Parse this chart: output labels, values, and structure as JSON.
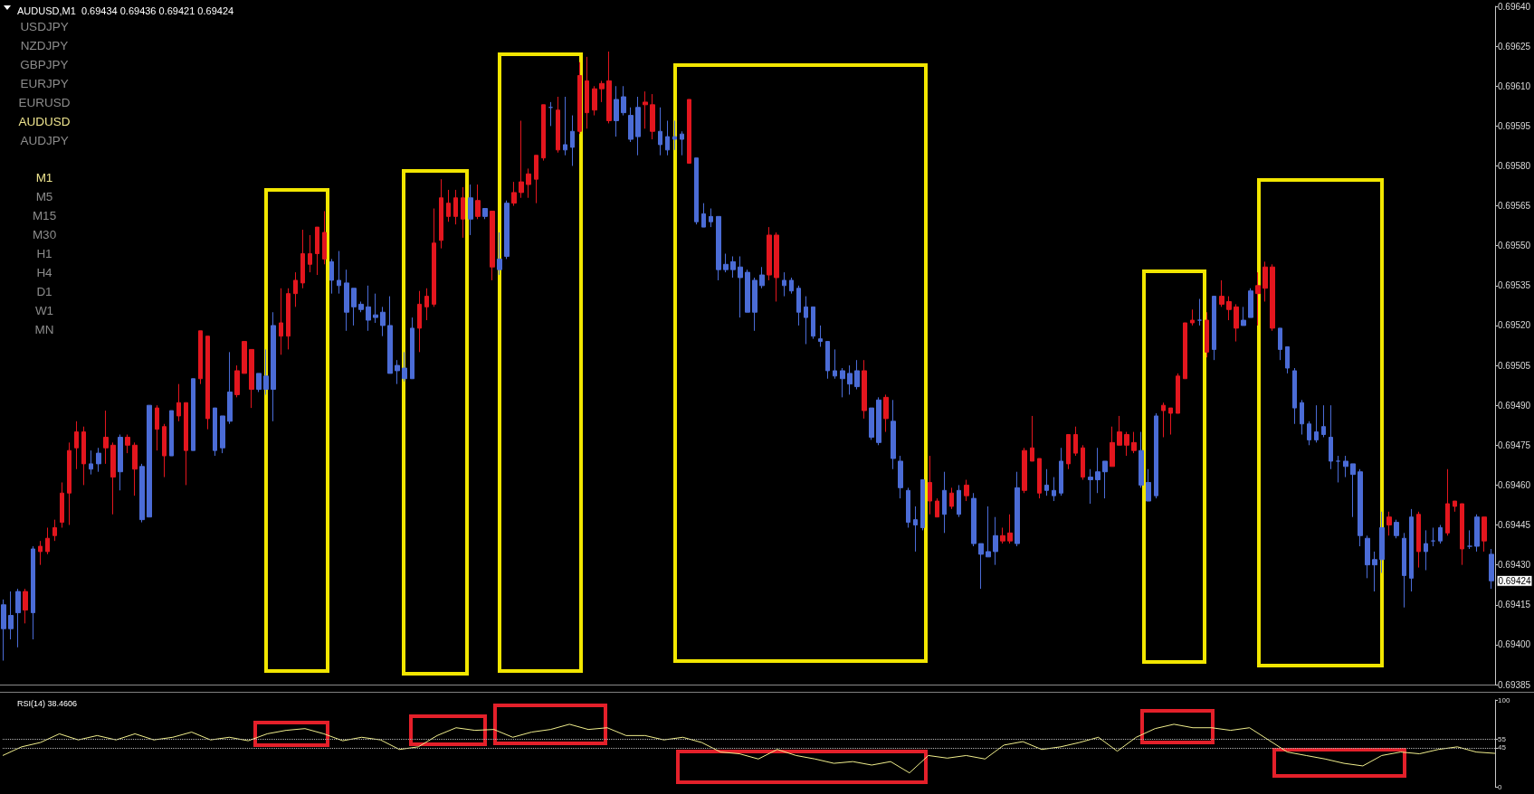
{
  "chart_data": [
    {
      "type": "candlestick",
      "title": "AUDUSD,M1  0.69434 0.69436 0.69421 0.69424",
      "categories": [
        null,
        null,
        null,
        null,
        null,
        null,
        null,
        null,
        null,
        null,
        null,
        null,
        null,
        null,
        null,
        null,
        null,
        null,
        null,
        null,
        null,
        null,
        null,
        null,
        null,
        null,
        null,
        null,
        null,
        null,
        null,
        null,
        null,
        null,
        null,
        null,
        null,
        null,
        null,
        null,
        null,
        null,
        null,
        null,
        null,
        null,
        null,
        null,
        null,
        null,
        null,
        null,
        null,
        null,
        null,
        null,
        null,
        null,
        null,
        null,
        null,
        null,
        null,
        null,
        null,
        null,
        null,
        null,
        null,
        null,
        null,
        null,
        null,
        null,
        null,
        null,
        null,
        null,
        null,
        null,
        null,
        null,
        null,
        null,
        null,
        null,
        null,
        null,
        null,
        null,
        null,
        null,
        null,
        null,
        null,
        null,
        null,
        null,
        null,
        null,
        null,
        null,
        null,
        null,
        null,
        null,
        null,
        null,
        null,
        null,
        null,
        null,
        null,
        null,
        null,
        null,
        null,
        null,
        null,
        null,
        null,
        null,
        null,
        null,
        null,
        null,
        null,
        null,
        null,
        null,
        null,
        null,
        null,
        null,
        null,
        null,
        null,
        null,
        null,
        null,
        null,
        null,
        null,
        null,
        null,
        null,
        null,
        null,
        null,
        null,
        null,
        null,
        null,
        null,
        null,
        null,
        null,
        null,
        null,
        null,
        null,
        null,
        null,
        null,
        null,
        null,
        null,
        null,
        null,
        null,
        null,
        null,
        null,
        null,
        null,
        null,
        null,
        null,
        null,
        null,
        null,
        null,
        null,
        null,
        null,
        null,
        null,
        null,
        null,
        null,
        null,
        null,
        null,
        null,
        null,
        null,
        null,
        null,
        null,
        null,
        null,
        null,
        null,
        null,
        null
      ],
      "ohlc": [
        [
          0.69415,
          0.69417,
          0.69394,
          0.69406
        ],
        [
          0.69411,
          0.6942,
          0.69402,
          0.69406
        ],
        [
          0.6942,
          0.69421,
          0.69399,
          0.69412
        ],
        [
          0.69413,
          0.69421,
          0.69408,
          0.6942
        ],
        [
          0.69436,
          0.69437,
          0.69402,
          0.69412
        ],
        [
          0.69435,
          0.69439,
          0.6943,
          0.69437
        ],
        [
          0.69435,
          0.69444,
          0.69434,
          0.6944
        ],
        [
          0.69441,
          0.69447,
          0.69439,
          0.69444
        ],
        [
          0.69446,
          0.69461,
          0.69444,
          0.69457
        ],
        [
          0.69457,
          0.69476,
          0.69445,
          0.69473
        ],
        [
          0.69474,
          0.69484,
          0.69466,
          0.6948
        ],
        [
          0.69468,
          0.69482,
          0.6946,
          0.6948
        ],
        [
          0.69468,
          0.69473,
          0.69464,
          0.69466
        ],
        [
          0.69472,
          0.69474,
          0.69465,
          0.69468
        ],
        [
          0.69474,
          0.69488,
          0.69468,
          0.69478
        ],
        [
          0.69463,
          0.69476,
          0.69449,
          0.69475
        ],
        [
          0.69478,
          0.69479,
          0.69458,
          0.69465
        ],
        [
          0.69475,
          0.69479,
          0.69472,
          0.69478
        ],
        [
          0.69466,
          0.69476,
          0.69456,
          0.69475
        ],
        [
          0.69467,
          0.69468,
          0.69446,
          0.69447
        ],
        [
          0.6949,
          0.6949,
          0.69448,
          0.69448
        ],
        [
          0.69481,
          0.6949,
          0.69473,
          0.69489
        ],
        [
          0.69471,
          0.69483,
          0.69463,
          0.69482
        ],
        [
          0.69488,
          0.69488,
          0.69471,
          0.69471
        ],
        [
          0.69486,
          0.69498,
          0.69484,
          0.69491
        ],
        [
          0.69473,
          0.69491,
          0.6946,
          0.69491
        ],
        [
          0.695,
          0.695,
          0.69473,
          0.69473
        ],
        [
          0.695,
          0.69518,
          0.69498,
          0.69518
        ],
        [
          0.69485,
          0.69516,
          0.69481,
          0.69516
        ],
        [
          0.69489,
          0.69489,
          0.69471,
          0.69473
        ],
        [
          0.69486,
          0.69486,
          0.69472,
          0.69474
        ],
        [
          0.69495,
          0.6951,
          0.69483,
          0.69484
        ],
        [
          0.69494,
          0.69505,
          0.69493,
          0.69503
        ],
        [
          0.69502,
          0.69514,
          0.69502,
          0.69514
        ],
        [
          0.69496,
          0.69511,
          0.69489,
          0.69511
        ],
        [
          0.69502,
          0.69502,
          0.69495,
          0.69496
        ],
        [
          0.69501,
          0.69511,
          0.69494,
          0.69496
        ],
        [
          0.6952,
          0.69525,
          0.69484,
          0.69496
        ],
        [
          0.69516,
          0.69534,
          0.69509,
          0.69521
        ],
        [
          0.69516,
          0.69534,
          0.69511,
          0.69532
        ],
        [
          0.69532,
          0.6954,
          0.69527,
          0.69537
        ],
        [
          0.69536,
          0.69556,
          0.69534,
          0.69547
        ],
        [
          0.69543,
          0.69554,
          0.6954,
          0.69547
        ],
        [
          0.69547,
          0.69557,
          0.69539,
          0.69557
        ],
        [
          0.69545,
          0.69563,
          0.69543,
          0.69555
        ],
        [
          0.69544,
          0.69545,
          0.69532,
          0.69537
        ],
        [
          0.69537,
          0.69548,
          0.69532,
          0.69535
        ],
        [
          0.69536,
          0.69541,
          0.69518,
          0.69525
        ],
        [
          0.69534,
          0.69534,
          0.6952,
          0.69527
        ],
        [
          0.69528,
          0.69529,
          0.69525,
          0.69526
        ],
        [
          0.69527,
          0.69535,
          0.69518,
          0.69522
        ],
        [
          0.69524,
          0.69532,
          0.69521,
          0.69523
        ],
        [
          0.69525,
          0.69527,
          0.69516,
          0.6952
        ],
        [
          0.6952,
          0.69531,
          0.69502,
          0.69502
        ],
        [
          0.69505,
          0.69507,
          0.69498,
          0.69503
        ],
        [
          0.69504,
          0.6951,
          0.69499,
          0.695
        ],
        [
          0.69519,
          0.69523,
          0.695,
          0.695
        ],
        [
          0.69519,
          0.69533,
          0.6951,
          0.69528
        ],
        [
          0.69527,
          0.69534,
          0.69522,
          0.69531
        ],
        [
          0.69528,
          0.69564,
          0.69527,
          0.69551
        ],
        [
          0.69552,
          0.69575,
          0.69549,
          0.69568
        ],
        [
          0.69561,
          0.69571,
          0.69559,
          0.69566
        ],
        [
          0.69561,
          0.69571,
          0.69558,
          0.69568
        ],
        [
          0.6956,
          0.69572,
          0.69553,
          0.69568
        ],
        [
          0.69568,
          0.69573,
          0.69554,
          0.6956
        ],
        [
          0.69561,
          0.69573,
          0.6956,
          0.69567
        ],
        [
          0.69564,
          0.69564,
          0.6956,
          0.69561
        ],
        [
          0.69542,
          0.69563,
          0.69537,
          0.69563
        ],
        [
          0.69545,
          0.69555,
          0.69539,
          0.69541
        ],
        [
          0.69566,
          0.69567,
          0.69545,
          0.69546
        ],
        [
          0.69566,
          0.69574,
          0.69565,
          0.6957
        ],
        [
          0.6957,
          0.69597,
          0.69568,
          0.69574
        ],
        [
          0.69573,
          0.69579,
          0.69568,
          0.69577
        ],
        [
          0.69575,
          0.69584,
          0.69566,
          0.69584
        ],
        [
          0.69583,
          0.69603,
          0.69582,
          0.69603
        ],
        [
          0.69602,
          0.69604,
          0.69595,
          0.69602
        ],
        [
          0.69586,
          0.69606,
          0.69585,
          0.69601
        ],
        [
          0.69588,
          0.69606,
          0.69584,
          0.69586
        ],
        [
          0.69593,
          0.69599,
          0.6958,
          0.69587
        ],
        [
          0.69593,
          0.69619,
          0.69592,
          0.69614
        ],
        [
          0.696,
          0.69621,
          0.69594,
          0.69612
        ],
        [
          0.69601,
          0.6961,
          0.69599,
          0.69609
        ],
        [
          0.69609,
          0.69612,
          0.69604,
          0.69611
        ],
        [
          0.69597,
          0.69623,
          0.69596,
          0.69612
        ],
        [
          0.69605,
          0.6961,
          0.69591,
          0.69597
        ],
        [
          0.69606,
          0.6961,
          0.69599,
          0.696
        ],
        [
          0.69599,
          0.69602,
          0.69589,
          0.6959
        ],
        [
          0.69602,
          0.69606,
          0.69584,
          0.69591
        ],
        [
          0.69603,
          0.69608,
          0.69594,
          0.69604
        ],
        [
          0.69593,
          0.69607,
          0.6959,
          0.69603
        ],
        [
          0.69593,
          0.69602,
          0.69584,
          0.69588
        ],
        [
          0.69591,
          0.69597,
          0.69584,
          0.69586
        ],
        [
          0.69591,
          0.69597,
          0.69586,
          0.6959
        ],
        [
          0.69592,
          0.69593,
          0.69584,
          0.6959
        ],
        [
          0.69581,
          0.69605,
          0.69581,
          0.69605
        ],
        [
          0.69583,
          0.69583,
          0.69558,
          0.69559
        ],
        [
          0.69562,
          0.69566,
          0.69557,
          0.69557
        ],
        [
          0.69561,
          0.69564,
          0.69557,
          0.69559
        ],
        [
          0.69561,
          0.69561,
          0.69537,
          0.69541
        ],
        [
          0.69543,
          0.69547,
          0.6954,
          0.69541
        ],
        [
          0.69544,
          0.69546,
          0.69538,
          0.69541
        ],
        [
          0.69542,
          0.69546,
          0.69523,
          0.69538
        ],
        [
          0.6954,
          0.69541,
          0.69525,
          0.69525
        ],
        [
          0.69537,
          0.69538,
          0.69518,
          0.69525
        ],
        [
          0.69539,
          0.69542,
          0.69534,
          0.69535
        ],
        [
          0.69539,
          0.69557,
          0.69537,
          0.69554
        ],
        [
          0.69538,
          0.69555,
          0.69529,
          0.69554
        ],
        [
          0.69537,
          0.6954,
          0.69531,
          0.69535
        ],
        [
          0.69537,
          0.69538,
          0.69532,
          0.69533
        ],
        [
          0.69534,
          0.69535,
          0.6952,
          0.69525
        ],
        [
          0.69527,
          0.69531,
          0.69513,
          0.69523
        ],
        [
          0.69527,
          0.69527,
          0.69515,
          0.69516
        ],
        [
          0.69515,
          0.6952,
          0.69512,
          0.69514
        ],
        [
          0.69514,
          0.69514,
          0.695,
          0.69503
        ],
        [
          0.69503,
          0.69511,
          0.695,
          0.69501
        ],
        [
          0.69503,
          0.69504,
          0.69493,
          0.695
        ],
        [
          0.69502,
          0.69505,
          0.69494,
          0.69498
        ],
        [
          0.69503,
          0.69507,
          0.69496,
          0.69497
        ],
        [
          0.69488,
          0.69507,
          0.69485,
          0.69503
        ],
        [
          0.69489,
          0.69489,
          0.69477,
          0.69478
        ],
        [
          0.69492,
          0.69493,
          0.69475,
          0.69476
        ],
        [
          0.69485,
          0.69494,
          0.6948,
          0.69493
        ],
        [
          0.69484,
          0.69492,
          0.69466,
          0.6947
        ],
        [
          0.69469,
          0.69471,
          0.69455,
          0.69459
        ],
        [
          0.69458,
          0.69459,
          0.69444,
          0.69446
        ],
        [
          0.69447,
          0.69452,
          0.69435,
          0.69445
        ],
        [
          0.69462,
          0.69462,
          0.69443,
          0.69444
        ],
        [
          0.69454,
          0.69471,
          0.69449,
          0.69461
        ],
        [
          0.69448,
          0.69455,
          0.69448,
          0.69454
        ],
        [
          0.69458,
          0.69465,
          0.69442,
          0.69449
        ],
        [
          0.69452,
          0.69459,
          0.69451,
          0.69457
        ],
        [
          0.69458,
          0.6946,
          0.69448,
          0.69449
        ],
        [
          0.69456,
          0.69462,
          0.69454,
          0.6946
        ],
        [
          0.69455,
          0.69457,
          0.69437,
          0.69438
        ],
        [
          0.69438,
          0.69438,
          0.69421,
          0.69434
        ],
        [
          0.69435,
          0.69452,
          0.69433,
          0.69433
        ],
        [
          0.69441,
          0.69448,
          0.6943,
          0.69435
        ],
        [
          0.69439,
          0.69444,
          0.69438,
          0.69441
        ],
        [
          0.69439,
          0.69449,
          0.69438,
          0.69442
        ],
        [
          0.69459,
          0.69465,
          0.69437,
          0.69438
        ],
        [
          0.69458,
          0.69474,
          0.69457,
          0.69473
        ],
        [
          0.69469,
          0.69486,
          0.69469,
          0.69474
        ],
        [
          0.69457,
          0.6947,
          0.69455,
          0.6947
        ],
        [
          0.6946,
          0.69466,
          0.69456,
          0.69458
        ],
        [
          0.69458,
          0.69463,
          0.69454,
          0.69456
        ],
        [
          0.69469,
          0.69474,
          0.69456,
          0.69457
        ],
        [
          0.69468,
          0.69479,
          0.69466,
          0.69479
        ],
        [
          0.69472,
          0.69482,
          0.69471,
          0.69479
        ],
        [
          0.69463,
          0.69475,
          0.69462,
          0.69474
        ],
        [
          0.69463,
          0.69466,
          0.69453,
          0.69462
        ],
        [
          0.69465,
          0.69474,
          0.69457,
          0.69462
        ],
        [
          0.69469,
          0.69469,
          0.69455,
          0.69465
        ],
        [
          0.69467,
          0.69482,
          0.69467,
          0.69476
        ],
        [
          0.69475,
          0.69486,
          0.69475,
          0.6948
        ],
        [
          0.69475,
          0.6948,
          0.69471,
          0.69479
        ],
        [
          0.69473,
          0.6948,
          0.69472,
          0.69476
        ],
        [
          0.69473,
          0.6948,
          0.69459,
          0.6946
        ],
        [
          0.69461,
          0.69466,
          0.69454,
          0.69454
        ],
        [
          0.69486,
          0.69487,
          0.69455,
          0.69456
        ],
        [
          0.69488,
          0.69491,
          0.69478,
          0.6949
        ],
        [
          0.69487,
          0.69489,
          0.69479,
          0.69489
        ],
        [
          0.69487,
          0.69502,
          0.69487,
          0.69501
        ],
        [
          0.695,
          0.69521,
          0.695,
          0.69521
        ],
        [
          0.69521,
          0.69526,
          0.6952,
          0.69522
        ],
        [
          0.69522,
          0.6953,
          0.6952,
          0.69522
        ],
        [
          0.6951,
          0.69525,
          0.69508,
          0.69522
        ],
        [
          0.69531,
          0.69531,
          0.69507,
          0.69511
        ],
        [
          0.69528,
          0.69537,
          0.69527,
          0.69531
        ],
        [
          0.69526,
          0.69531,
          0.69522,
          0.69529
        ],
        [
          0.69519,
          0.69528,
          0.69514,
          0.69527
        ],
        [
          0.69522,
          0.69527,
          0.6952,
          0.6952
        ],
        [
          0.69533,
          0.69534,
          0.69523,
          0.69523
        ],
        [
          0.69532,
          0.6954,
          0.6952,
          0.69535
        ],
        [
          0.69534,
          0.69544,
          0.69529,
          0.69542
        ],
        [
          0.69519,
          0.69543,
          0.69518,
          0.69542
        ],
        [
          0.69519,
          0.69519,
          0.69507,
          0.69511
        ],
        [
          0.69512,
          0.69512,
          0.69502,
          0.69504
        ],
        [
          0.69503,
          0.69504,
          0.69483,
          0.69489
        ],
        [
          0.69491,
          0.69492,
          0.69479,
          0.69483
        ],
        [
          0.69483,
          0.69484,
          0.69475,
          0.69477
        ],
        [
          0.6948,
          0.6949,
          0.69476,
          0.69477
        ],
        [
          0.69482,
          0.6949,
          0.69478,
          0.69479
        ],
        [
          0.69478,
          0.6949,
          0.69466,
          0.69469
        ],
        [
          0.69469,
          0.69471,
          0.69461,
          0.69469
        ],
        [
          0.69469,
          0.69471,
          0.69463,
          0.69467
        ],
        [
          0.69468,
          0.69468,
          0.69448,
          0.69464
        ],
        [
          0.69465,
          0.69466,
          0.69437,
          0.69441
        ],
        [
          0.6944,
          0.69441,
          0.69425,
          0.6943
        ],
        [
          0.69432,
          0.69435,
          0.6942,
          0.6943
        ],
        [
          0.69444,
          0.6945,
          0.69427,
          0.69432
        ],
        [
          0.69445,
          0.6945,
          0.69441,
          0.69448
        ],
        [
          0.69446,
          0.69447,
          0.6944,
          0.69441
        ],
        [
          0.6944,
          0.69442,
          0.69414,
          0.69426
        ],
        [
          0.69448,
          0.69451,
          0.6942,
          0.69425
        ],
        [
          0.69435,
          0.6945,
          0.69429,
          0.69449
        ],
        [
          0.69438,
          0.69443,
          0.69428,
          0.69435
        ],
        [
          0.69439,
          0.69444,
          0.69437,
          0.69439
        ],
        [
          0.69444,
          0.69445,
          0.69438,
          0.69439
        ],
        [
          0.69442,
          0.69466,
          0.69441,
          0.69453
        ],
        [
          0.69452,
          0.69454,
          0.6945,
          0.69454
        ],
        [
          0.69436,
          0.69453,
          0.6943,
          0.69453
        ],
        [
          0.69437,
          0.69443,
          0.69436,
          0.69437
        ],
        [
          0.69448,
          0.69449,
          0.69435,
          0.69437
        ],
        [
          0.69439,
          0.69448,
          0.69435,
          0.69448
        ],
        [
          0.69434,
          0.69436,
          0.69421,
          0.69424
        ]
      ],
      "colors": [
        "#4b6cd6",
        "#4b6cd6",
        "#4b6cd6",
        "#e3161e",
        "#4b6cd6",
        "#e3161e",
        "#e3161e",
        "#e3161e",
        "#e3161e",
        "#e3161e",
        "#e3161e",
        "#e3161e",
        "#4b6cd6",
        "#4b6cd6",
        "#e3161e",
        "#e3161e",
        "#4b6cd6",
        "#e3161e",
        "#e3161e",
        "#4b6cd6",
        "#4b6cd6",
        "#e3161e",
        "#e3161e",
        "#4b6cd6",
        "#e3161e",
        "#e3161e",
        "#4b6cd6",
        "#e3161e",
        "#e3161e",
        "#4b6cd6",
        "#4b6cd6",
        "#4b6cd6",
        "#e3161e",
        "#e3161e",
        "#e3161e",
        "#4b6cd6",
        "#4b6cd6",
        "#4b6cd6",
        "#e3161e",
        "#e3161e",
        "#e3161e",
        "#e3161e",
        "#e3161e",
        "#e3161e",
        "#e3161e",
        "#4b6cd6",
        "#4b6cd6",
        "#4b6cd6",
        "#4b6cd6",
        "#4b6cd6",
        "#4b6cd6",
        "#4b6cd6",
        "#4b6cd6",
        "#4b6cd6",
        "#4b6cd6",
        "#4b6cd6",
        "#4b6cd6",
        "#e3161e",
        "#e3161e",
        "#e3161e",
        "#e3161e",
        "#e3161e",
        "#e3161e",
        "#e3161e",
        "#4b6cd6",
        "#e3161e",
        "#4b6cd6",
        "#e3161e",
        "#4b6cd6",
        "#4b6cd6",
        "#e3161e",
        "#e3161e",
        "#e3161e",
        "#e3161e",
        "#e3161e",
        "#4b6cd6",
        "#e3161e",
        "#4b6cd6",
        "#4b6cd6",
        "#e3161e",
        "#e3161e",
        "#e3161e",
        "#e3161e",
        "#e3161e",
        "#4b6cd6",
        "#4b6cd6",
        "#4b6cd6",
        "#4b6cd6",
        "#e3161e",
        "#e3161e",
        "#4b6cd6",
        "#4b6cd6",
        "#4b6cd6",
        "#4b6cd6",
        "#e3161e",
        "#4b6cd6",
        "#4b6cd6",
        "#4b6cd6",
        "#4b6cd6",
        "#4b6cd6",
        "#4b6cd6",
        "#4b6cd6",
        "#4b6cd6",
        "#4b6cd6",
        "#4b6cd6",
        "#e3161e",
        "#e3161e",
        "#4b6cd6",
        "#4b6cd6",
        "#4b6cd6",
        "#4b6cd6",
        "#4b6cd6",
        "#4b6cd6",
        "#4b6cd6",
        "#4b6cd6",
        "#4b6cd6",
        "#4b6cd6",
        "#4b6cd6",
        "#e3161e",
        "#4b6cd6",
        "#4b6cd6",
        "#e3161e",
        "#4b6cd6",
        "#4b6cd6",
        "#4b6cd6",
        "#4b6cd6",
        "#4b6cd6",
        "#e3161e",
        "#e3161e",
        "#4b6cd6",
        "#e3161e",
        "#4b6cd6",
        "#e3161e",
        "#4b6cd6",
        "#4b6cd6",
        "#4b6cd6",
        "#4b6cd6",
        "#e3161e",
        "#e3161e",
        "#4b6cd6",
        "#e3161e",
        "#e3161e",
        "#e3161e",
        "#4b6cd6",
        "#4b6cd6",
        "#4b6cd6",
        "#e3161e",
        "#e3161e",
        "#e3161e",
        "#4b6cd6",
        "#4b6cd6",
        "#4b6cd6",
        "#e3161e",
        "#e3161e",
        "#e3161e",
        "#e3161e",
        "#4b6cd6",
        "#4b6cd6",
        "#4b6cd6",
        "#e3161e",
        "#e3161e",
        "#e3161e",
        "#e3161e",
        "#e3161e",
        "#4b6cd6",
        "#e3161e",
        "#4b6cd6",
        "#e3161e",
        "#e3161e",
        "#e3161e",
        "#4b6cd6",
        "#4b6cd6",
        "#e3161e",
        "#e3161e",
        "#e3161e",
        "#4b6cd6",
        "#4b6cd6",
        "#4b6cd6",
        "#4b6cd6",
        "#4b6cd6",
        "#4b6cd6",
        "#4b6cd6",
        "#4b6cd6",
        "#4b6cd6",
        "#4b6cd6",
        "#4b6cd6",
        "#4b6cd6",
        "#4b6cd6",
        "#4b6cd6",
        "#4b6cd6",
        "#e3161e",
        "#4b6cd6",
        "#4b6cd6",
        "#4b6cd6",
        "#e3161e",
        "#4b6cd6",
        "#4b6cd6",
        "#4b6cd6",
        "#e3161e",
        "#e3161e",
        "#e3161e",
        "#4b6cd6",
        "#4b6cd6",
        "#e3161e",
        "#4b6cd6"
      ],
      "ylim": [
        0.69385,
        0.6964
      ],
      "yticks": [
        0.69385,
        {
          "value": 0.694,
          "label": "0.69400"
        },
        0.69415,
        {
          "value": 0.6943,
          "label": "0.69430"
        },
        0.69445,
        {
          "value": 0.6946,
          "label": "0.69460"
        },
        0.69475,
        {
          "value": 0.6949,
          "label": "0.69490"
        },
        0.69505,
        {
          "value": 0.6952,
          "label": "0.69520"
        },
        0.69535,
        {
          "value": 0.6955,
          "label": "0.69550"
        },
        0.69565,
        {
          "value": 0.6958,
          "label": "0.69580"
        },
        0.69595,
        {
          "value": 0.6961,
          "label": "0.69610"
        },
        0.69625,
        {
          "value": 0.6964,
          "label": "0.69640"
        }
      ],
      "annotations": [
        "USDJPY",
        "NZDJPY",
        "GBPJPY",
        "EURJPY",
        "EURUSD",
        "AUDUSD",
        "AUDJPY",
        "M1",
        "M5",
        "M15",
        "M30",
        "H1",
        "H4",
        "D1",
        "W1",
        "MN",
        {
          "text": "0.69424",
          "y": 0.69424
        }
      ]
    },
    {
      "type": "line",
      "title": "RSI(14) 38.4606",
      "color": "#f0ee8c",
      "categories": [
        null,
        null,
        null,
        null,
        null,
        null,
        null,
        null,
        null,
        null,
        null,
        null,
        null,
        null,
        null,
        null,
        null,
        null,
        null,
        null,
        null,
        null,
        null,
        null,
        null,
        null,
        null,
        null,
        null,
        null,
        null,
        null,
        null,
        null,
        null,
        null,
        null,
        null,
        null,
        null,
        null,
        null,
        null,
        null,
        null,
        null,
        null,
        null,
        null,
        null,
        null,
        null,
        null,
        null,
        null,
        null,
        null,
        null,
        null,
        null,
        null,
        null,
        null,
        null,
        null,
        null,
        null,
        null,
        null,
        null,
        null,
        null,
        null,
        null,
        null,
        null,
        null,
        null,
        null,
        null
      ],
      "values": [
        36,
        46,
        51,
        61,
        54,
        59,
        54,
        61,
        54,
        57,
        63,
        54,
        57,
        53,
        61,
        65,
        67,
        61,
        53,
        57,
        54,
        43,
        46,
        59,
        68,
        65,
        66,
        57,
        63,
        66,
        72,
        66,
        68,
        59,
        59,
        54,
        57,
        51,
        40,
        38,
        32,
        43,
        36,
        32,
        27,
        29,
        25,
        29,
        16,
        36,
        33,
        36,
        32,
        48,
        52,
        43,
        46,
        51,
        57,
        41,
        57,
        67,
        72,
        68,
        68,
        65,
        68,
        54,
        40,
        36,
        32,
        27,
        24,
        36,
        40,
        38,
        43,
        46,
        40,
        38.4606
      ],
      "ylim": [
        0,
        100
      ],
      "yticks": [
        0,
        45,
        55,
        100
      ],
      "ref_lines": [
        {
          "axis": "y",
          "value": 55,
          "color": "#b4b4b4",
          "line_style": "dotted"
        },
        {
          "axis": "y",
          "value": 45,
          "color": "#b4b4b4",
          "line_style": "dotted"
        }
      ]
    }
  ]
}
